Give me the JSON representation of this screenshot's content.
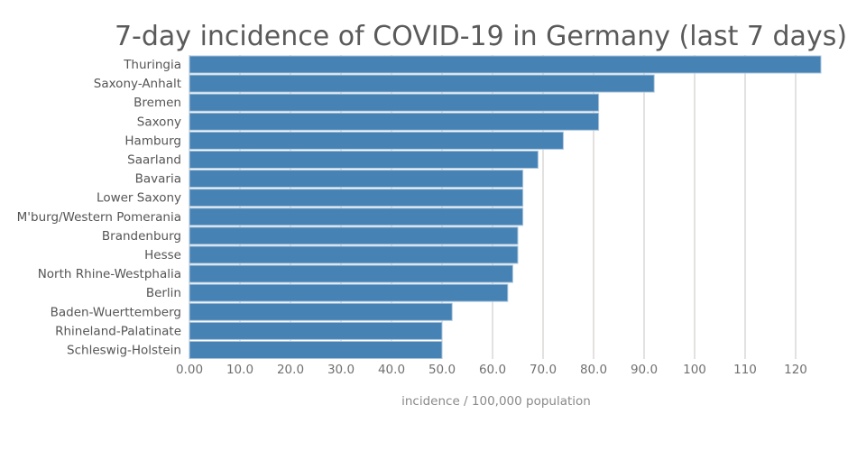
{
  "chart_data": {
    "type": "bar",
    "orientation": "horizontal",
    "title": "7-day incidence of COVID-19 in Germany (last 7 days)",
    "xlabel": "incidence / 100,000 population",
    "ylabel": "",
    "categories": [
      "Thuringia",
      "Saxony-Anhalt",
      "Bremen",
      "Saxony",
      "Hamburg",
      "Saarland",
      "Bavaria",
      "Lower Saxony",
      "M'burg/Western Pomerania",
      "Brandenburg",
      "Hesse",
      "North Rhine-Westphalia",
      "Berlin",
      "Baden-Wuerttemberg",
      "Rhineland-Palatinate",
      "Schleswig-Holstein"
    ],
    "values": [
      125,
      92,
      81,
      81,
      74,
      69,
      66,
      66,
      66,
      65,
      65,
      64,
      63,
      52,
      50,
      50
    ],
    "xlim": [
      0,
      125
    ],
    "xticks": [
      0,
      10,
      20,
      30,
      40,
      50,
      60,
      70,
      80,
      90,
      100,
      110,
      120
    ],
    "xtick_labels": [
      "0.00",
      "10.0",
      "20.0",
      "30.0",
      "40.0",
      "50.0",
      "60.0",
      "70.0",
      "80.0",
      "90.0",
      "100",
      "110",
      "120"
    ],
    "grid": "vertical",
    "bar_color": "#4682b4",
    "legend": "none"
  }
}
